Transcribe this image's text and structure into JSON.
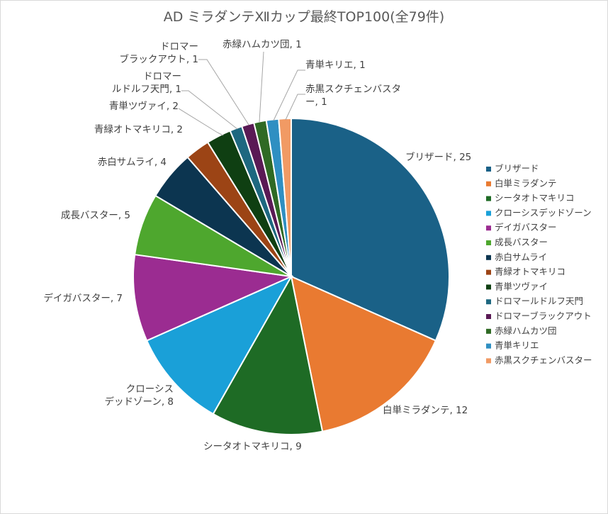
{
  "chart_data": {
    "type": "pie",
    "title": "AD ミラダンテⅫカップ最終TOP100(全79件)",
    "legend_position": "right",
    "slices": [
      {
        "name": "ブリザード",
        "value": 25,
        "color": "#1a6187",
        "label": [
          "ブリザード, 25"
        ]
      },
      {
        "name": "白単ミラダンテ",
        "value": 12,
        "color": "#e97a31",
        "label": [
          "白単ミラダンテ, 12"
        ]
      },
      {
        "name": "シータオトマキリコ",
        "value": 9,
        "color": "#1e6b25",
        "label": [
          "シータオトマキリコ, 9"
        ]
      },
      {
        "name": "クローシスデッドゾーン",
        "value": 8,
        "color": "#1aa0d8",
        "label": [
          "クローシス",
          "デッドゾーン, 8"
        ]
      },
      {
        "name": "デイガバスター",
        "value": 7,
        "color": "#9b2c91",
        "label": [
          "デイガバスター, 7"
        ]
      },
      {
        "name": "成長バスター",
        "value": 5,
        "color": "#4ea72e",
        "label": [
          "成長バスター, 5"
        ]
      },
      {
        "name": "赤白サムライ",
        "value": 4,
        "color": "#0c3550",
        "label": [
          "赤白サムライ, 4"
        ]
      },
      {
        "name": "青緑オトマキリコ",
        "value": 2,
        "color": "#9c4415",
        "label": [
          "青緑オトマキリコ, 2"
        ]
      },
      {
        "name": "青単ツヴァイ",
        "value": 2,
        "color": "#0f3f12",
        "label": [
          "青単ツヴァイ, 2"
        ]
      },
      {
        "name": "ドロマールドルフ天門",
        "value": 1,
        "color": "#1e6880",
        "label": [
          "ドロマー",
          "ルドルフ天門, 1"
        ]
      },
      {
        "name": "ドロマーブラックアウト",
        "value": 1,
        "color": "#5a1a55",
        "label": [
          "ドロマー",
          "ブラックアウト, 1"
        ]
      },
      {
        "name": "赤緑ハムカツ団",
        "value": 1,
        "color": "#2f6a24",
        "label": [
          "赤緑ハムカツ団, 1"
        ]
      },
      {
        "name": "青単キリエ",
        "value": 1,
        "color": "#2f8fc2",
        "label": [
          "青単キリエ, 1"
        ]
      },
      {
        "name": "赤黒スクチェンバスター",
        "value": 1,
        "color": "#f19a64",
        "label": [
          "赤黒スクチェンバスタ",
          "ー, 1"
        ]
      }
    ]
  }
}
